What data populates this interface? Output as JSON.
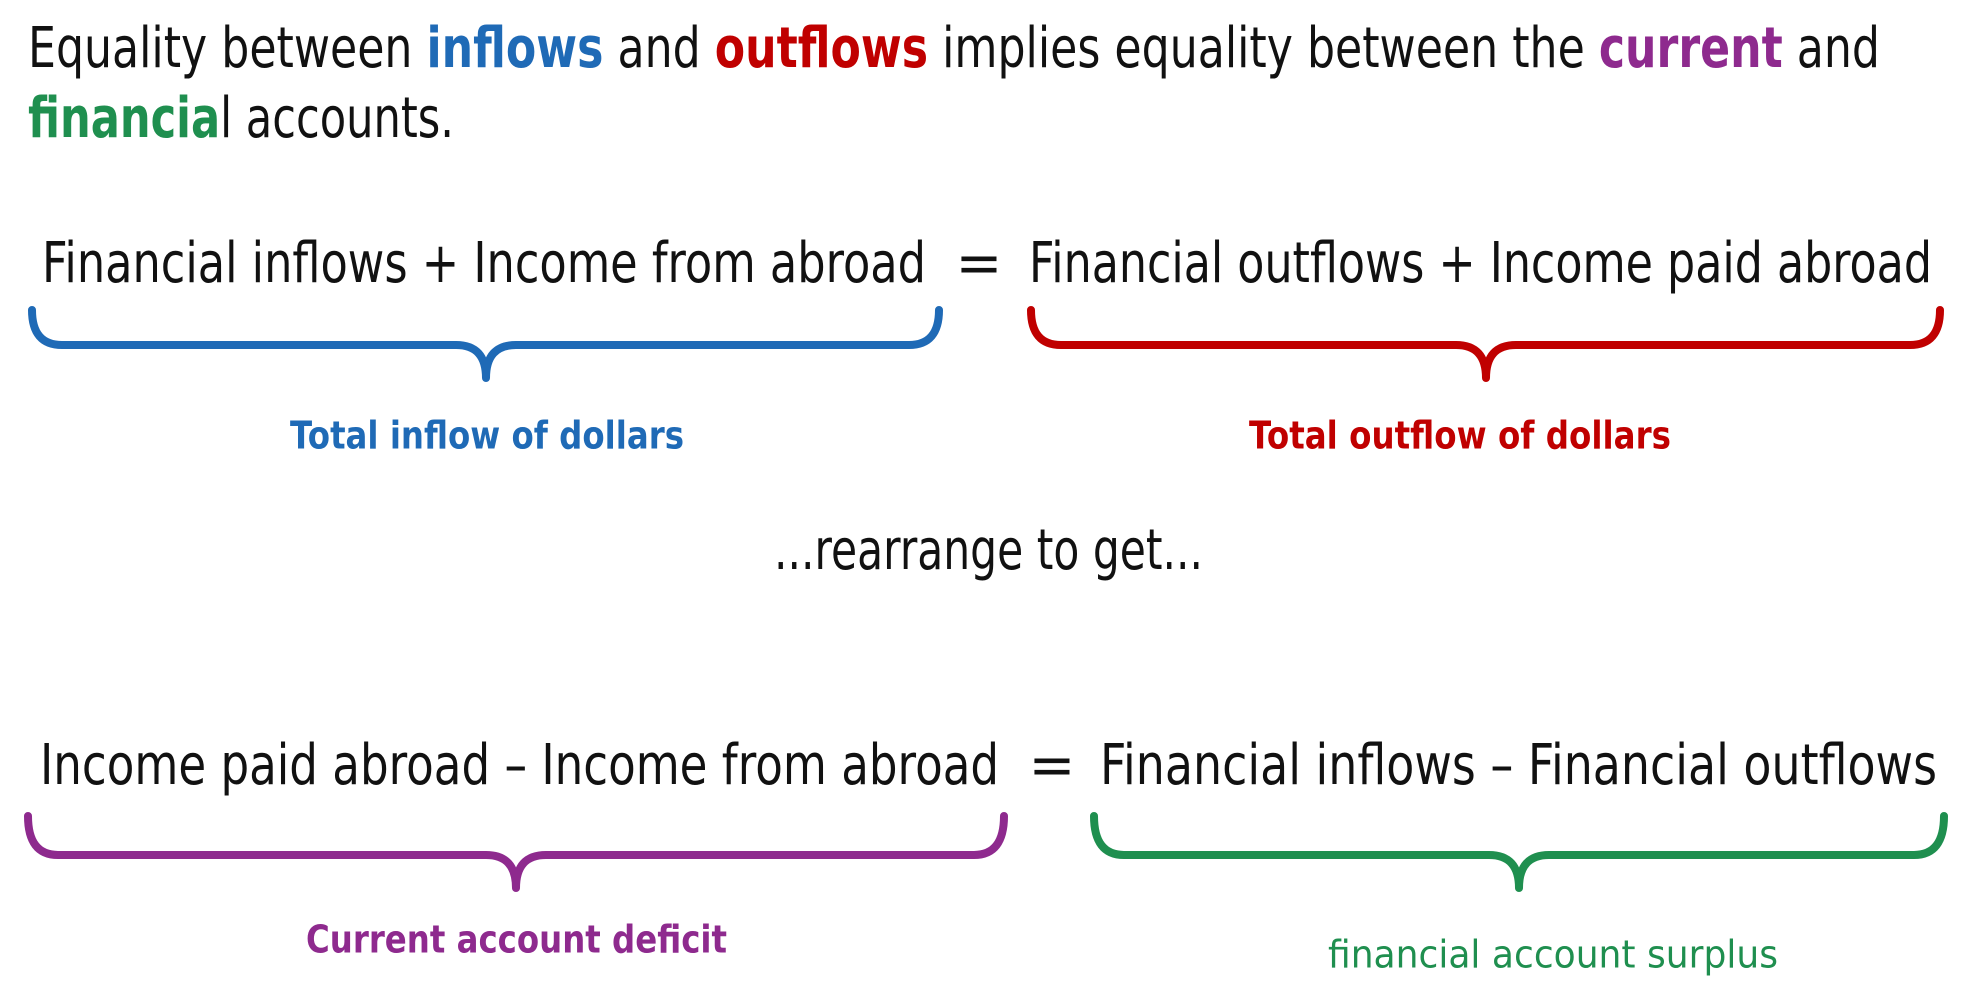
{
  "intro": {
    "line1": [
      "Equality between ",
      "inflows",
      " and ",
      "outflows",
      " implies equality between the ",
      "current",
      " and"
    ],
    "line2": [
      "financia",
      "l accounts."
    ]
  },
  "equation1": {
    "left": "Financial inflows + Income from abroad",
    "operator": "=",
    "right": "Financial outflows + Income paid abroad",
    "left_label": "Total inflow of dollars",
    "right_label": "Total outflow of dollars"
  },
  "transition": "...rearrange to get...",
  "equation2": {
    "left": "Income paid abroad – Income from abroad",
    "operator": "=",
    "right": "Financial inflows – Financial outflows",
    "left_label": "Current account deficit",
    "right_label": "financial account surplus"
  }
}
